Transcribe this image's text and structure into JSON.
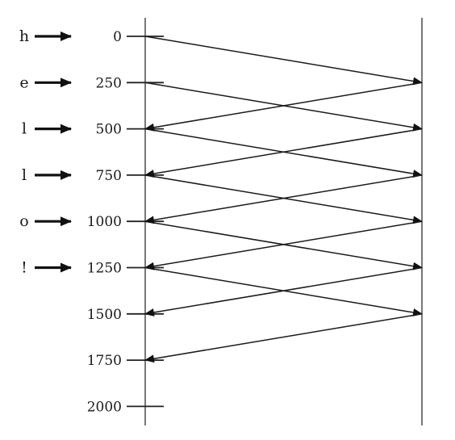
{
  "diagram": {
    "time_ticks": [
      "0",
      "250",
      "500",
      "750",
      "1000",
      "1250",
      "1500",
      "1750",
      "2000"
    ],
    "characters": [
      "h",
      "e",
      "l",
      "l",
      "o",
      "!"
    ],
    "messages": [
      {
        "from": "left",
        "send": 0,
        "arrive": 250
      },
      {
        "from": "left",
        "send": 250,
        "arrive": 500
      },
      {
        "from": "left",
        "send": 500,
        "arrive": 750
      },
      {
        "from": "left",
        "send": 750,
        "arrive": 1000
      },
      {
        "from": "left",
        "send": 1000,
        "arrive": 1250
      },
      {
        "from": "left",
        "send": 1250,
        "arrive": 1500
      },
      {
        "from": "right",
        "send": 250,
        "arrive": 500
      },
      {
        "from": "right",
        "send": 500,
        "arrive": 750
      },
      {
        "from": "right",
        "send": 750,
        "arrive": 1000
      },
      {
        "from": "right",
        "send": 1000,
        "arrive": 1250
      },
      {
        "from": "right",
        "send": 1250,
        "arrive": 1500
      },
      {
        "from": "right",
        "send": 1500,
        "arrive": 1750
      }
    ]
  }
}
